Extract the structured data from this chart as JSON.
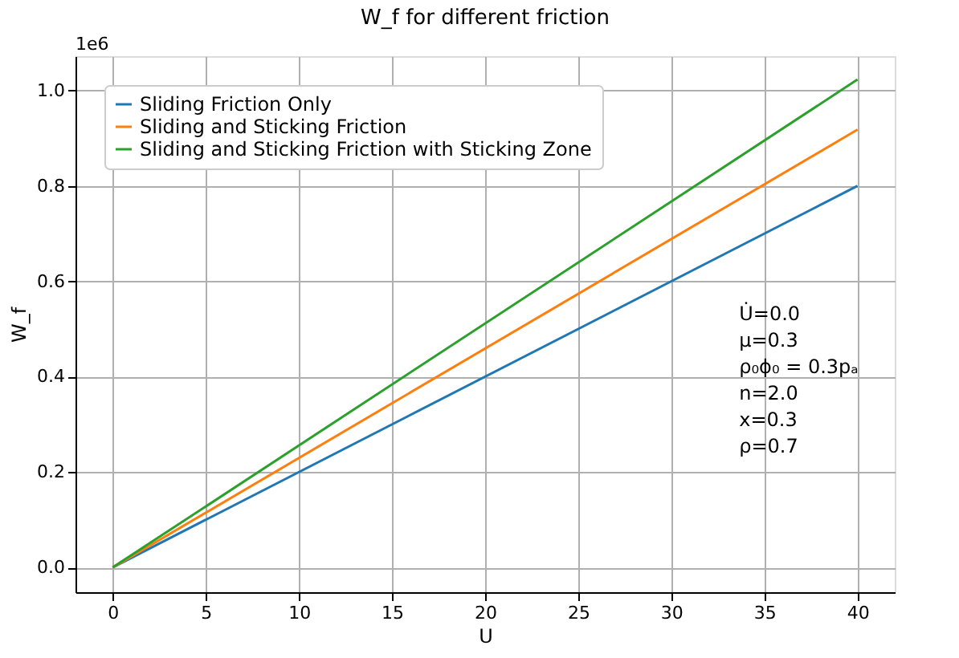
{
  "chart_data": {
    "type": "line",
    "title": "W_f for different friction",
    "xlabel": "U",
    "ylabel": "W_f",
    "x": [
      0,
      40
    ],
    "series": [
      {
        "name": "Sliding Friction Only",
        "color": "#1f77b4",
        "values": [
          0,
          0.8
        ]
      },
      {
        "name": "Sliding and Sticking Friction",
        "color": "#ff7f0e",
        "values": [
          0,
          0.918
        ]
      },
      {
        "name": "Sliding and Sticking Friction with Sticking Zone",
        "color": "#2ca02c",
        "values": [
          0,
          1.023
        ]
      }
    ],
    "xlim": [
      -2,
      42
    ],
    "xticks": [
      0,
      5,
      10,
      15,
      20,
      25,
      30,
      35,
      40
    ],
    "ylim": [
      -0.052,
      1.072
    ],
    "yticks": [
      {
        "value": 0,
        "label": "0.0"
      },
      0.2,
      0.4,
      0.6,
      0.8,
      {
        "value": 1,
        "label": "1.0"
      }
    ],
    "annotations": [
      "1e6",
      "U̇=0.0",
      "μ=0.3",
      "ρ₀ϕ₀ = 0.3pₐ",
      "n=2.0",
      "x=0.3",
      "ρ=0.7"
    ],
    "grid": true,
    "legend": "top left",
    "marker": "none",
    "line_style": "solid"
  }
}
